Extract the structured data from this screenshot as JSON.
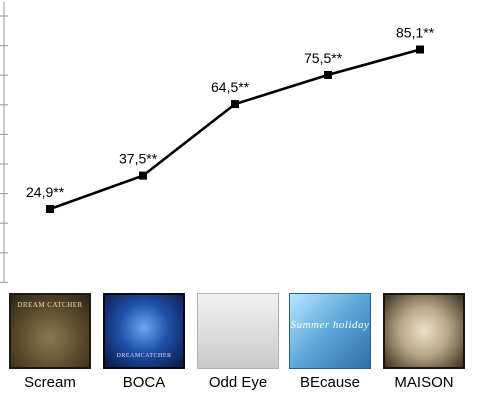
{
  "chart_data": {
    "type": "line",
    "categories": [
      "Scream",
      "BOCA",
      "Odd Eye",
      "BEcause",
      "MAISON"
    ],
    "values": [
      24.9,
      37.5,
      64.5,
      75.5,
      85.1
    ],
    "data_labels": [
      "24,9**",
      "37,5**",
      "64,5**",
      "75,5**",
      "85,1**"
    ],
    "ylim": [
      0,
      100
    ],
    "grid": false,
    "line_color": "#000000",
    "marker": "square"
  },
  "covers": [
    {
      "title": "DREAM CATCHER"
    },
    {
      "title": "DREAMCATCHER"
    },
    {
      "title": ""
    },
    {
      "title": "Summer holiday"
    },
    {
      "title": ""
    }
  ]
}
